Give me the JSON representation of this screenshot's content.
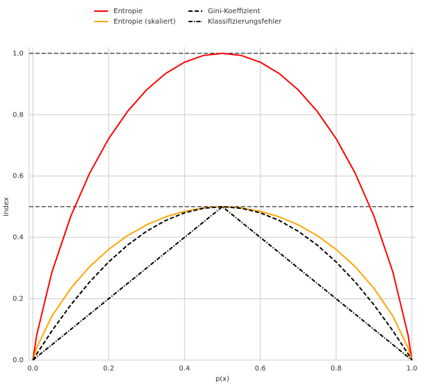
{
  "chart_data": {
    "type": "line",
    "xlabel": "p(x)",
    "ylabel": "Index",
    "x": [
      0,
      0.01,
      0.05,
      0.1,
      0.15,
      0.2,
      0.25,
      0.3,
      0.35,
      0.4,
      0.45,
      0.5,
      0.55,
      0.6,
      0.65,
      0.7,
      0.75,
      0.8,
      0.85,
      0.9,
      0.95,
      0.99,
      1.0
    ],
    "series": [
      {
        "name": "Entropie",
        "color": "#ff0000",
        "linestyle": "solid",
        "values": [
          0,
          0.081,
          0.286,
          0.469,
          0.61,
          0.722,
          0.811,
          0.881,
          0.934,
          0.971,
          0.993,
          1.0,
          0.993,
          0.971,
          0.934,
          0.881,
          0.811,
          0.722,
          0.61,
          0.469,
          0.286,
          0.081,
          0
        ]
      },
      {
        "name": "Entropie (skaliert)",
        "color": "#ffa500",
        "linestyle": "solid",
        "values": [
          0,
          0.04,
          0.143,
          0.234,
          0.305,
          0.361,
          0.406,
          0.441,
          0.467,
          0.485,
          0.496,
          0.5,
          0.496,
          0.485,
          0.467,
          0.441,
          0.406,
          0.361,
          0.305,
          0.234,
          0.143,
          0.04,
          0
        ]
      },
      {
        "name": "Gini-Koeffizient",
        "color": "#000000",
        "linestyle": "dashed",
        "values": [
          0,
          0.02,
          0.095,
          0.18,
          0.255,
          0.32,
          0.375,
          0.42,
          0.455,
          0.48,
          0.495,
          0.5,
          0.495,
          0.48,
          0.455,
          0.42,
          0.375,
          0.32,
          0.255,
          0.18,
          0.095,
          0.02,
          0
        ]
      },
      {
        "name": "Klassifizierungsfehler",
        "color": "#000000",
        "linestyle": "dashdot",
        "values": [
          0,
          0.01,
          0.05,
          0.1,
          0.15,
          0.2,
          0.25,
          0.3,
          0.35,
          0.4,
          0.45,
          0.5,
          0.45,
          0.4,
          0.35,
          0.3,
          0.25,
          0.2,
          0.15,
          0.1,
          0.05,
          0.01,
          0
        ]
      }
    ],
    "hlines": [
      0.5,
      1.0
    ],
    "xlim": [
      -0.01,
      1.01
    ],
    "ylim": [
      0,
      1.02
    ],
    "xticks": [
      {
        "value": 0,
        "label": "0.0"
      },
      0.2,
      0.4,
      0.6,
      0.8,
      {
        "value": 1,
        "label": "1.0"
      }
    ],
    "yticks": [
      {
        "value": 0,
        "label": "0.0"
      },
      0.2,
      0.4,
      0.6,
      0.8,
      {
        "value": 1,
        "label": "1.0"
      }
    ],
    "grid": true,
    "legend": "top"
  }
}
